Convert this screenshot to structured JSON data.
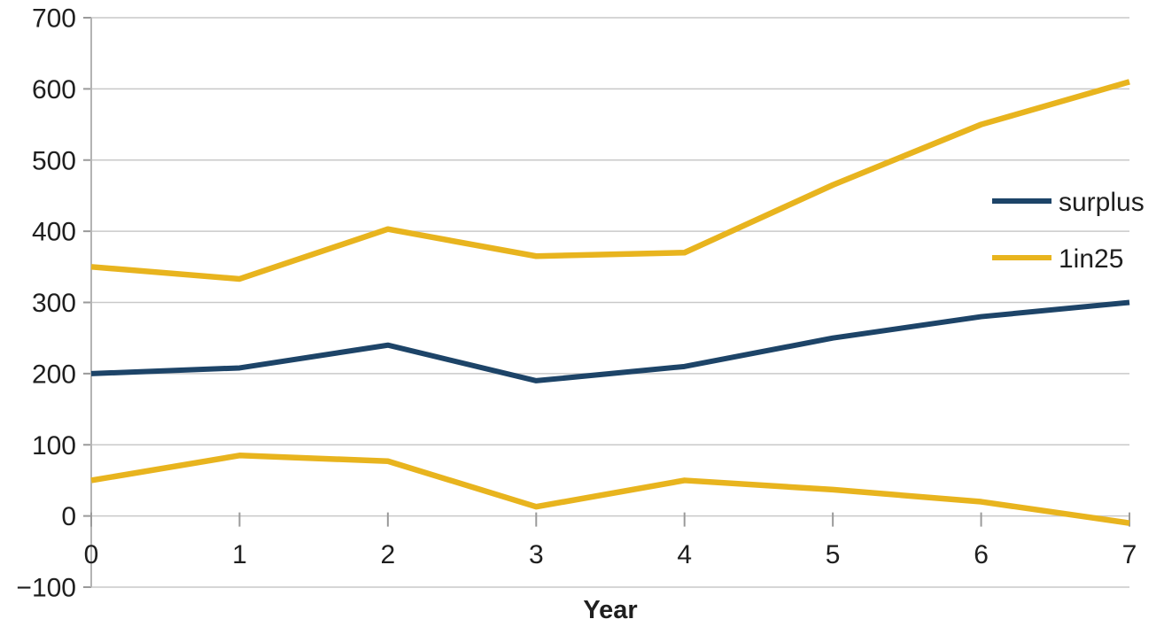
{
  "chart_data": {
    "type": "line",
    "title": "",
    "xlabel": "Year",
    "ylabel": "",
    "grid": true,
    "legend_position": "right",
    "xlim": [
      0,
      7
    ],
    "ylim": [
      -100,
      700
    ],
    "ytick_step": 100,
    "x": [
      0,
      1,
      2,
      3,
      4,
      5,
      6,
      7
    ],
    "xticks": [
      "0",
      "1",
      "2",
      "3",
      "4",
      "5",
      "6",
      "7"
    ],
    "yticks": [
      "700",
      "600",
      "500",
      "400",
      "300",
      "200",
      "100",
      "0",
      "−100"
    ],
    "series": [
      {
        "id": "surplus",
        "name": "surplus",
        "color": "#1d4468",
        "width": 6,
        "values": [
          200,
          208,
          240,
          190,
          210,
          250,
          280,
          300
        ]
      },
      {
        "id": "1in25_upper",
        "name": "1in25",
        "color": "#e8b41e",
        "width": 6.5,
        "values": [
          350,
          333,
          403,
          365,
          370,
          465,
          550,
          610
        ]
      },
      {
        "id": "1in25_lower",
        "name": "1in25",
        "color": "#e8b41e",
        "width": 6.5,
        "values": [
          50,
          85,
          77,
          13,
          50,
          37,
          20,
          -10
        ]
      }
    ],
    "legend": [
      {
        "label": "surplus",
        "color": "#1d4468"
      },
      {
        "label": "1in25",
        "color": "#e8b41e"
      }
    ],
    "colors": {
      "gridline": "#c9c9c9",
      "axis": "#b3b3b3",
      "tick": "#9a9a9a",
      "text": "#1f1f1f"
    }
  }
}
